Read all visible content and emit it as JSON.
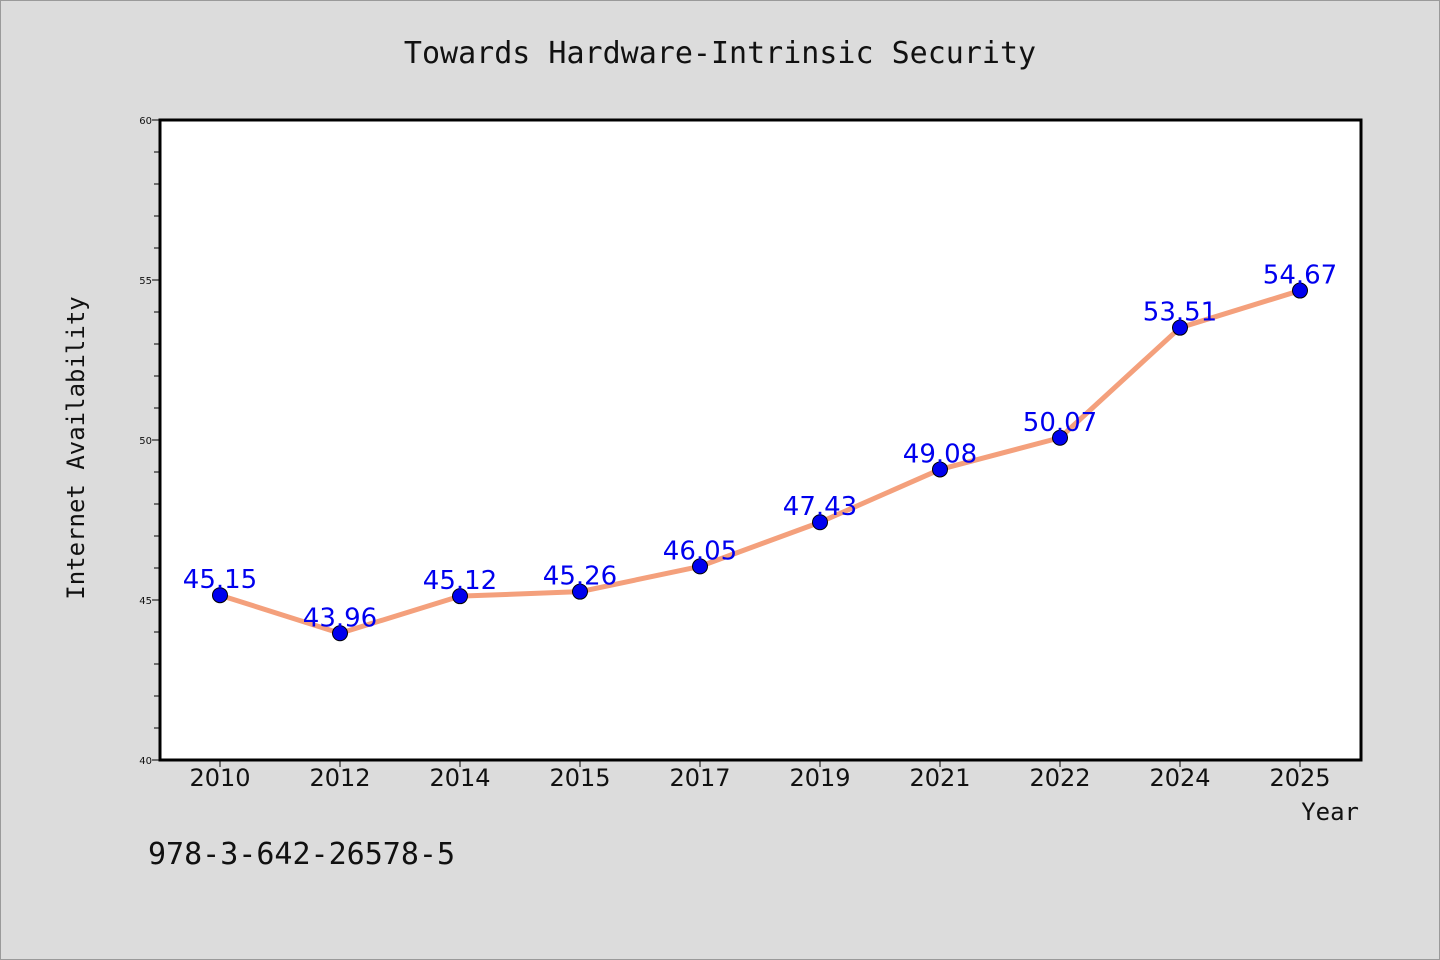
{
  "chart_data": {
    "type": "line",
    "title": "Towards Hardware-Intrinsic Security",
    "xlabel": "Year",
    "ylabel": "Internet Availability",
    "categories": [
      "2010",
      "2012",
      "2014",
      "2015",
      "2017",
      "2019",
      "2021",
      "2022",
      "2024",
      "2025"
    ],
    "series": [
      {
        "values": [
          45.15,
          43.96,
          45.12,
          45.26,
          46.05,
          47.43,
          49.08,
          50.07,
          53.51,
          54.67
        ],
        "data_labels": [
          "45.15",
          "43.96",
          "45.12",
          "45.26",
          "46.05",
          "47.43",
          "49.08",
          "50.07",
          "53.51",
          "54.67"
        ],
        "line_color": "#f4a07c",
        "marker_color": "#0000ee"
      }
    ],
    "ylim": [
      40,
      60
    ],
    "yticks": [
      "40",
      "45",
      "50",
      "55",
      "60"
    ],
    "grid": false,
    "legend": "none"
  },
  "footer": {
    "isbn": "978-3-642-26578-5"
  }
}
